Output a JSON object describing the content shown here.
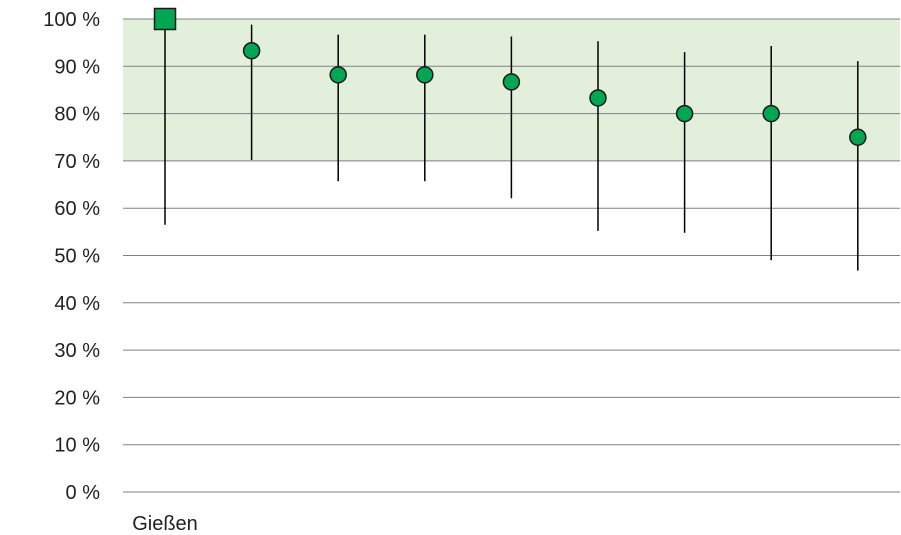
{
  "chart_data": {
    "type": "scatter",
    "title": "",
    "xlabel": "",
    "ylabel": "",
    "categories": [
      "Gießen",
      "",
      "",
      "",
      "",
      "",
      "",
      "",
      ""
    ],
    "points": [
      {
        "value": 100,
        "low": 56.5,
        "high": 100,
        "marker": "square"
      },
      {
        "value": 93.3,
        "low": 70.2,
        "high": 98.8,
        "marker": "circle"
      },
      {
        "value": 88.2,
        "low": 65.7,
        "high": 96.7,
        "marker": "circle"
      },
      {
        "value": 88.2,
        "low": 65.7,
        "high": 96.7,
        "marker": "circle"
      },
      {
        "value": 86.7,
        "low": 62.1,
        "high": 96.3,
        "marker": "circle"
      },
      {
        "value": 83.3,
        "low": 55.2,
        "high": 95.3,
        "marker": "circle"
      },
      {
        "value": 80.0,
        "low": 54.8,
        "high": 93.0,
        "marker": "circle"
      },
      {
        "value": 80.0,
        "low": 49.0,
        "high": 94.3,
        "marker": "circle"
      },
      {
        "value": 75.0,
        "low": 46.8,
        "high": 91.1,
        "marker": "circle"
      }
    ],
    "y_ticks": [
      "0 %",
      "10 %",
      "20 %",
      "30 %",
      "40 %",
      "50 %",
      "60 %",
      "70 %",
      "80 %",
      "90 %",
      "100 %"
    ],
    "ylim": [
      0,
      100
    ],
    "target_band": [
      70,
      100
    ],
    "grid": true,
    "legend": "none",
    "colors": {
      "marker_fill": "#00a651",
      "marker_stroke": "#1a1a1a",
      "band": "#e2efda",
      "grid": "#808080",
      "whisker": "#000000"
    }
  }
}
